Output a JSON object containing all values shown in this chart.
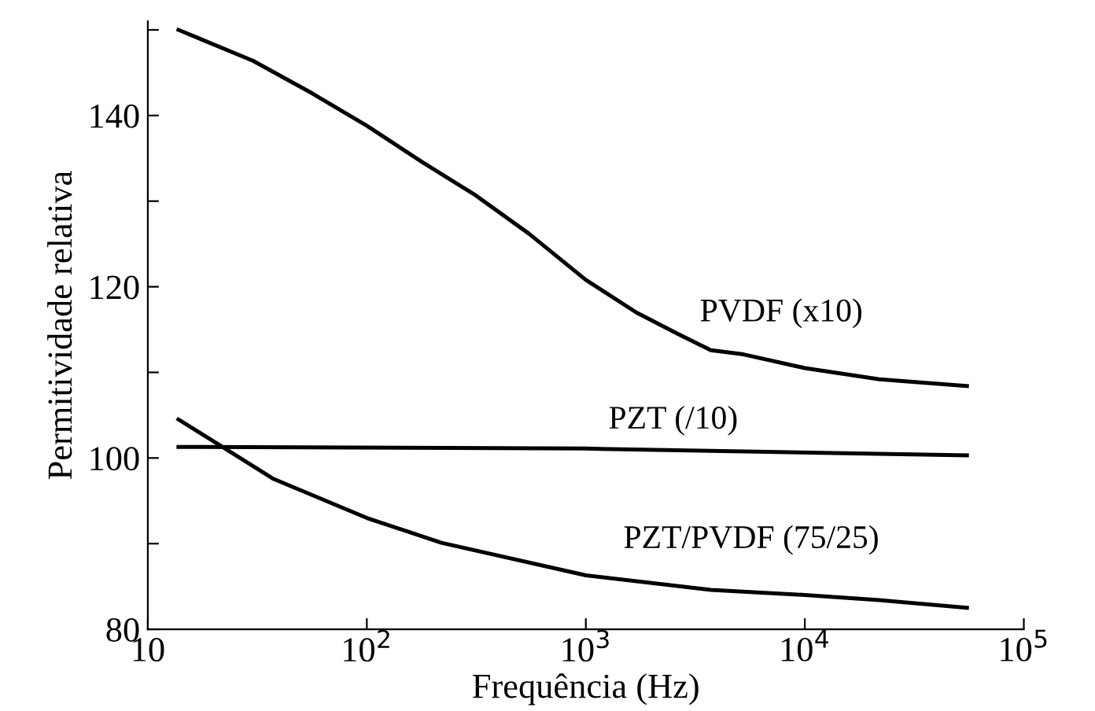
{
  "chart_data": {
    "type": "line",
    "xlabel": "Frequência (Hz)",
    "ylabel": "Permitividade relativa",
    "log": "x",
    "xlim": [
      10,
      100000
    ],
    "xticks": [
      10,
      {
        "value": 100,
        "label": "10$^{2}$"
      },
      {
        "value": 1000,
        "label": "10$^{3}$"
      },
      {
        "value": 10000,
        "label": "10$^{4}$"
      },
      {
        "value": 100000,
        "label": "10$^{5}$"
      }
    ],
    "ylim": [
      80,
      151
    ],
    "yticks": [
      80,
      {
        "value": 90,
        "label": null
      },
      100,
      {
        "value": 110,
        "label": null
      },
      120,
      {
        "value": 130,
        "label": null
      },
      140,
      {
        "value": 150,
        "label": null
      }
    ],
    "grid": false,
    "legend": false,
    "marker": "none",
    "line_style": "solid",
    "series": [
      {
        "name": "PVDF (x10)",
        "color": "#000000",
        "x": [
          13.8,
          30.2,
          56.2,
          100,
          178,
          309,
          550,
          1000,
          1700,
          2630,
          3720,
          5250,
          10000,
          21900,
          55000
        ],
        "values": [
          150.0,
          146.4,
          142.6,
          138.8,
          134.6,
          130.8,
          126.2,
          120.8,
          117.0,
          114.5,
          112.6,
          112.1,
          110.5,
          109.2,
          108.4
        ]
      },
      {
        "name": "PZT (/10)",
        "color": "#000000",
        "x": [
          13.8,
          1000,
          55000
        ],
        "values": [
          101.3,
          101.1,
          100.3
        ]
      },
      {
        "name": "PZT/PVDF (75/25)",
        "color": "#000000",
        "x": [
          13.8,
          19.5,
          37.2,
          100,
          219,
          1000,
          3720,
          10000,
          21900,
          55000
        ],
        "values": [
          104.5,
          102.1,
          97.6,
          93.0,
          90.1,
          86.3,
          84.6,
          84.0,
          83.4,
          82.5
        ]
      }
    ]
  }
}
